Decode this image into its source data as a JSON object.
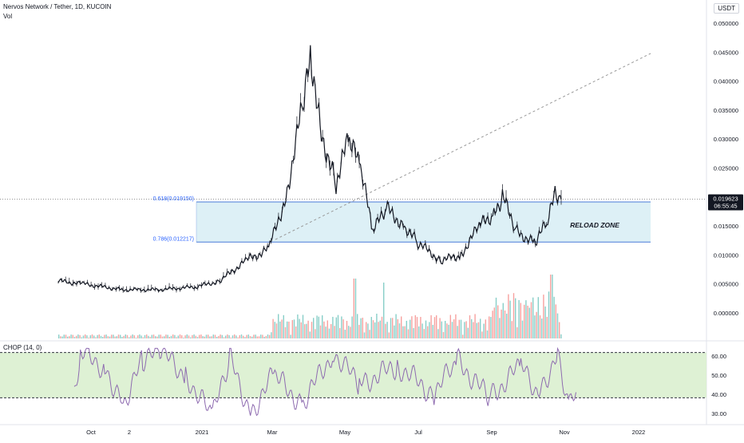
{
  "header": {
    "symbol_line": "Nervos Network / Tether, 1D, KUCOIN",
    "vol_label": "Vol",
    "currency": "USDT"
  },
  "indicator": {
    "label": "CHOP (14, 0)",
    "band_upper": 61.8,
    "band_lower": 38.2,
    "y_ticks": [
      "60.00",
      "50.00",
      "40.00",
      "30.00"
    ]
  },
  "price_badge": {
    "price": "0.019623",
    "countdown": "06:55:45"
  },
  "fib": {
    "upper_label": "0.618(0.019150)",
    "lower_label": "0.786(0.012217)",
    "upper": 0.01915,
    "lower": 0.012217
  },
  "zone_label": "RELOAD ZONE",
  "colors": {
    "up": "#26a69a",
    "down": "#ef5350",
    "zone_fill": "#d4ecf4",
    "zone_line": "#4a7bd8",
    "chop_line": "#8e6bb0",
    "chop_band": "#d8efcd"
  },
  "chart_data": {
    "type": "candlestick",
    "title": "Nervos Network / Tether, 1D, KUCOIN",
    "y_axis_ticks": [
      "0.050000",
      "0.045000",
      "0.040000",
      "0.035000",
      "0.030000",
      "0.025000",
      "0.020000",
      "0.015000",
      "0.010000",
      "0.005000",
      "0.000000"
    ],
    "x_axis_ticks": [
      "Oct",
      "2",
      "2021",
      "Mar",
      "May",
      "Jul",
      "Sep",
      "Nov",
      "2022"
    ],
    "ylim": [
      0,
      0.05
    ],
    "approx_close_series": [
      {
        "x": "2020-09-10",
        "y": 0.0055
      },
      {
        "x": "2020-10-01",
        "y": 0.005
      },
      {
        "x": "2020-11-01",
        "y": 0.004
      },
      {
        "x": "2020-12-01",
        "y": 0.004
      },
      {
        "x": "2021-01-01",
        "y": 0.0045
      },
      {
        "x": "2021-01-20",
        "y": 0.0055
      },
      {
        "x": "2021-02-10",
        "y": 0.009
      },
      {
        "x": "2021-03-01",
        "y": 0.011
      },
      {
        "x": "2021-03-15",
        "y": 0.02
      },
      {
        "x": "2021-03-28",
        "y": 0.035
      },
      {
        "x": "2021-04-05",
        "y": 0.044
      },
      {
        "x": "2021-04-12",
        "y": 0.032
      },
      {
        "x": "2021-04-25",
        "y": 0.022
      },
      {
        "x": "2021-05-05",
        "y": 0.03
      },
      {
        "x": "2021-05-15",
        "y": 0.025
      },
      {
        "x": "2021-05-25",
        "y": 0.014
      },
      {
        "x": "2021-06-05",
        "y": 0.018
      },
      {
        "x": "2021-06-20",
        "y": 0.015
      },
      {
        "x": "2021-07-01",
        "y": 0.012
      },
      {
        "x": "2021-07-20",
        "y": 0.009
      },
      {
        "x": "2021-08-05",
        "y": 0.01
      },
      {
        "x": "2021-08-20",
        "y": 0.015
      },
      {
        "x": "2021-09-01",
        "y": 0.017
      },
      {
        "x": "2021-09-08",
        "y": 0.02
      },
      {
        "x": "2021-09-20",
        "y": 0.014
      },
      {
        "x": "2021-10-05",
        "y": 0.012
      },
      {
        "x": "2021-10-15",
        "y": 0.016
      },
      {
        "x": "2021-10-22",
        "y": 0.021
      },
      {
        "x": "2021-10-26",
        "y": 0.01962
      }
    ],
    "chop_series": [
      {
        "x": "2020-09-10",
        "y": 42
      },
      {
        "x": "2020-09-15",
        "y": 62
      },
      {
        "x": "2020-10-05",
        "y": 54
      },
      {
        "x": "2020-10-20",
        "y": 35
      },
      {
        "x": "2020-11-05",
        "y": 58
      },
      {
        "x": "2020-11-20",
        "y": 62
      },
      {
        "x": "2020-12-10",
        "y": 50
      },
      {
        "x": "2021-01-01",
        "y": 28
      },
      {
        "x": "2021-01-15",
        "y": 60
      },
      {
        "x": "2021-02-01",
        "y": 30
      },
      {
        "x": "2021-02-20",
        "y": 50
      },
      {
        "x": "2021-03-15",
        "y": 35
      },
      {
        "x": "2021-04-10",
        "y": 62
      },
      {
        "x": "2021-05-01",
        "y": 45
      },
      {
        "x": "2021-06-01",
        "y": 55
      },
      {
        "x": "2021-07-01",
        "y": 40
      },
      {
        "x": "2021-07-20",
        "y": 58
      },
      {
        "x": "2021-08-15",
        "y": 38
      },
      {
        "x": "2021-09-10",
        "y": 55
      },
      {
        "x": "2021-09-25",
        "y": 40
      },
      {
        "x": "2021-10-10",
        "y": 62
      },
      {
        "x": "2021-10-20",
        "y": 33
      },
      {
        "x": "2021-10-26",
        "y": 43
      }
    ]
  }
}
